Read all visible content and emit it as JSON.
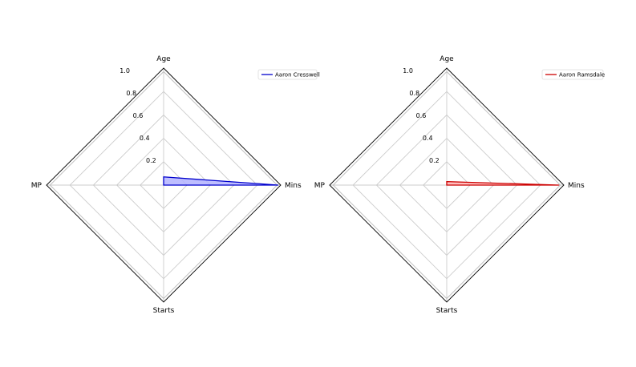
{
  "chart_data": [
    {
      "type": "radar",
      "axes": [
        "Age",
        "Mins",
        "Starts",
        "MP"
      ],
      "rticks": [
        "0.2",
        "0.4",
        "0.6",
        "0.8",
        "1.0"
      ],
      "rlim": [
        0,
        1.0
      ],
      "series": [
        {
          "name": "Aaron Cresswell",
          "values": [
            0.07,
            0.98,
            0.0,
            0.0
          ],
          "color": "#0000cc",
          "fill": "#b3b3ff"
        }
      ],
      "legend": "top-right",
      "grid": true
    },
    {
      "type": "radar",
      "axes": [
        "Age",
        "Mins",
        "Starts",
        "MP"
      ],
      "rticks": [
        "0.2",
        "0.4",
        "0.6",
        "0.8",
        "1.0"
      ],
      "rlim": [
        0,
        1.0
      ],
      "series": [
        {
          "name": "Aaron Ramsdale",
          "values": [
            0.03,
            0.96,
            0.0,
            0.0
          ],
          "color": "#cc0000",
          "fill": "#ffb3b3"
        }
      ],
      "legend": "top-right",
      "grid": true
    }
  ]
}
